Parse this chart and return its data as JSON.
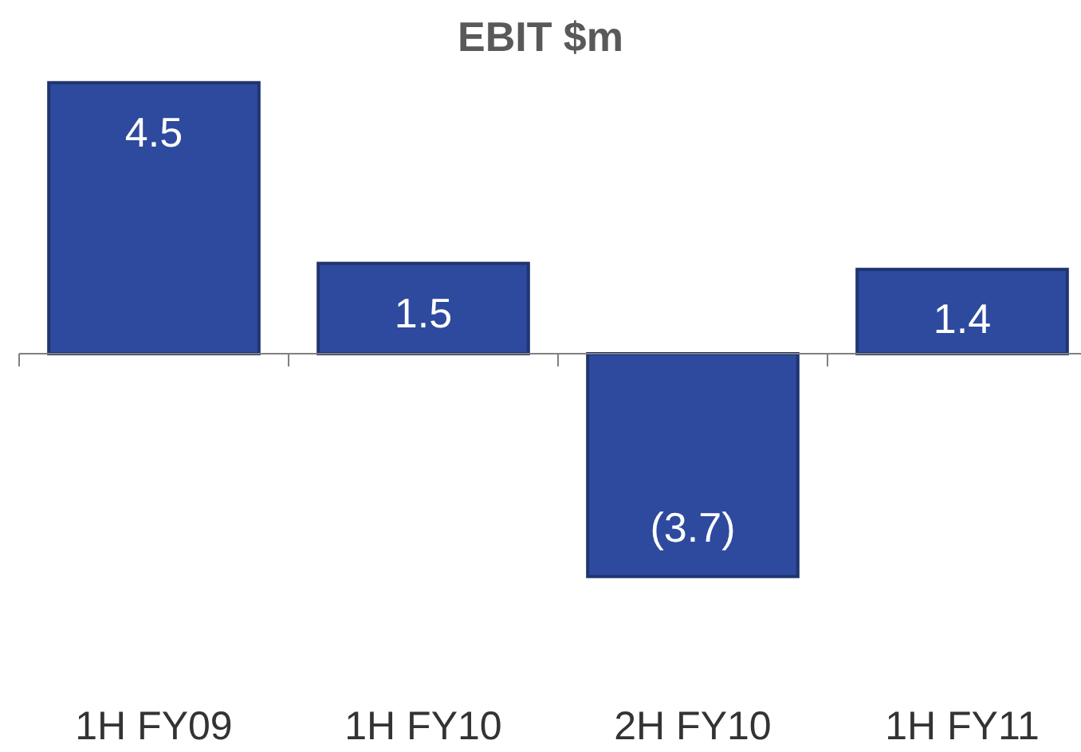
{
  "chart_data": {
    "type": "bar",
    "title": "EBIT $m",
    "categories": [
      "1H FY09",
      "1H FY10",
      "2H FY10",
      "1H FY11"
    ],
    "values": [
      4.5,
      1.5,
      -3.7,
      1.4
    ],
    "value_labels": [
      "4.5",
      "1.5",
      "(3.7)",
      "1.4"
    ],
    "color": "#2e4a9e"
  }
}
